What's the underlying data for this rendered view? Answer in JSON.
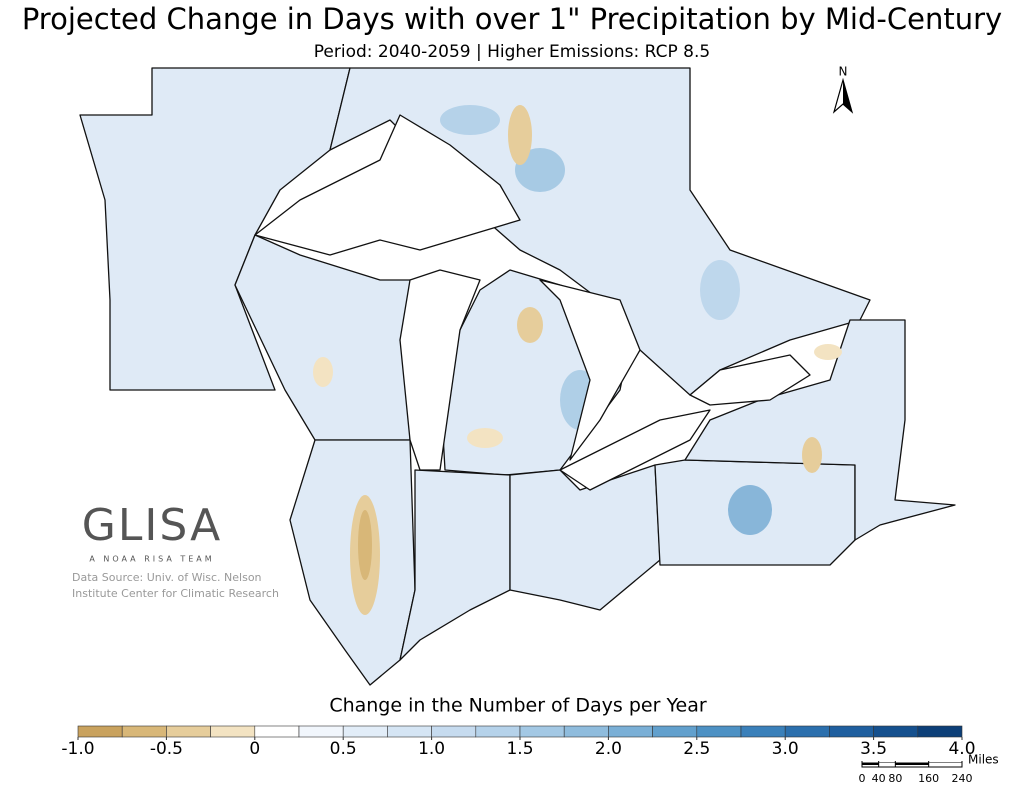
{
  "header": {
    "title": "Projected Change in Days with over 1\" Precipitation by Mid-Century",
    "subtitle": "Period: 2040-2059 | Higher Emissions: RCP 8.5"
  },
  "legend": {
    "title": "Change in the Number of Days per Year",
    "range": [
      -1,
      4
    ],
    "colors": [
      "#c9a25e",
      "#d8b778",
      "#e6cd9b",
      "#f3e3c2",
      "#ffffff",
      "#f1f6fc",
      "#e2edf8",
      "#d5e5f4",
      "#c6dbef",
      "#b5d2ea",
      "#a3c8e4",
      "#8fbcdd",
      "#7aafd6",
      "#62a0cd",
      "#4d91c4",
      "#3a80ba",
      "#2b6fad",
      "#1f5f9f",
      "#15508e",
      "#0c3f78"
    ],
    "ticks": [
      {
        "value": -1,
        "label": "-1.0"
      },
      -0.5,
      0,
      0.5,
      {
        "value": 1,
        "label": "1.0"
      },
      1.5,
      {
        "value": 2,
        "label": "2.0"
      },
      2.5,
      {
        "value": 3,
        "label": "3.0"
      },
      3.5,
      {
        "value": 4,
        "label": "4.0"
      }
    ]
  },
  "logo": {
    "name": "GLISA",
    "tagline": "A NOAA RISA TEAM"
  },
  "source": [
    "Data Source: Univ. of Wisc. Nelson",
    "Institute Center for Climatic Research"
  ],
  "north": "N",
  "scale": {
    "unit": "Miles",
    "ticks": [
      0,
      40,
      80,
      160,
      240
    ]
  }
}
